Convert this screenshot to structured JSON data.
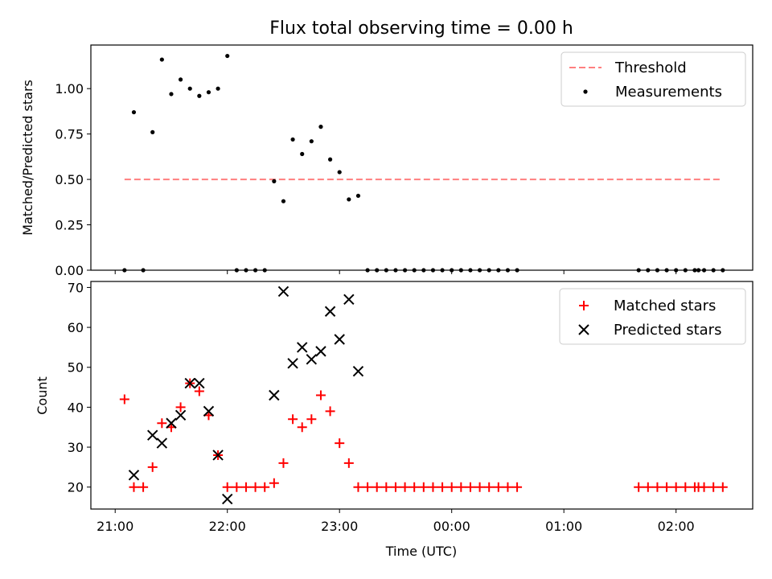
{
  "chart_data": [
    {
      "type": "scatter",
      "title": "Flux total observing time = 0.00 h",
      "xlabel": "",
      "ylabel": "Matched/Predicted stars",
      "xlim": [
        "20:47",
        "02:41"
      ],
      "ylim": [
        0,
        1.24
      ],
      "xticks": [
        "21:00",
        "22:00",
        "23:00",
        "00:00",
        "01:00",
        "02:00"
      ],
      "yticks": [
        "0.00",
        "0.25",
        "0.50",
        "0.75",
        "1.00"
      ],
      "ytick_values": [
        0,
        0.25,
        0.5,
        0.75,
        1.0
      ],
      "legend": {
        "position": "upper right",
        "entries": [
          "Threshold",
          "Measurements"
        ]
      },
      "colors": {
        "threshold": "#ff7f7f",
        "measurements": "#000000"
      },
      "threshold": {
        "name": "Threshold",
        "value": 0.5,
        "x_start": "21:05",
        "x_end": "02:25"
      },
      "series": [
        {
          "name": "Measurements",
          "x": [
            "21:05",
            "21:10",
            "21:15",
            "21:20",
            "21:25",
            "21:30",
            "21:35",
            "21:40",
            "21:45",
            "21:50",
            "21:55",
            "22:00",
            "22:05",
            "22:10",
            "22:15",
            "22:20",
            "22:25",
            "22:30",
            "22:35",
            "22:40",
            "22:45",
            "22:50",
            "22:55",
            "23:00",
            "23:05",
            "23:10",
            "23:15",
            "23:20",
            "23:25",
            "23:30",
            "23:35",
            "23:40",
            "23:45",
            "23:50",
            "23:55",
            "00:00",
            "00:05",
            "00:10",
            "00:15",
            "00:20",
            "00:25",
            "00:30",
            "00:35",
            "01:40",
            "01:45",
            "01:50",
            "01:55",
            "02:00",
            "02:05",
            "02:10",
            "02:12",
            "02:15",
            "02:20",
            "02:25"
          ],
          "y": [
            0,
            0.87,
            0,
            0.76,
            1.16,
            0.97,
            1.05,
            1.0,
            0.96,
            0.98,
            1.0,
            1.18,
            0,
            0,
            0,
            0,
            0.49,
            0.38,
            0.72,
            0.64,
            0.71,
            0.79,
            0.61,
            0.54,
            0.39,
            0.41,
            0,
            0,
            0,
            0,
            0,
            0,
            0,
            0,
            0,
            0,
            0,
            0,
            0,
            0,
            0,
            0,
            0,
            0,
            0,
            0,
            0,
            0,
            0,
            0,
            0,
            0,
            0,
            0
          ]
        }
      ]
    },
    {
      "type": "scatter",
      "title": "",
      "xlabel": "Time (UTC)",
      "ylabel": "Count",
      "xlim": [
        "20:47",
        "02:41"
      ],
      "ylim": [
        14.5,
        71.5
      ],
      "xticks": [
        "21:00",
        "22:00",
        "23:00",
        "00:00",
        "01:00",
        "02:00"
      ],
      "yticks": [
        "20",
        "30",
        "40",
        "50",
        "60",
        "70"
      ],
      "ytick_values": [
        20,
        30,
        40,
        50,
        60,
        70
      ],
      "legend": {
        "position": "upper right",
        "entries": [
          "Matched stars",
          "Predicted stars"
        ]
      },
      "colors": {
        "matched": "#ff0000",
        "predicted": "#000000"
      },
      "series": [
        {
          "name": "Matched stars",
          "marker": "plus",
          "x": [
            "21:05",
            "21:10",
            "21:15",
            "21:20",
            "21:25",
            "21:30",
            "21:35",
            "21:40",
            "21:45",
            "21:50",
            "21:55",
            "22:00",
            "22:05",
            "22:10",
            "22:15",
            "22:20",
            "22:25",
            "22:30",
            "22:35",
            "22:40",
            "22:45",
            "22:50",
            "22:55",
            "23:00",
            "23:05",
            "23:10",
            "23:15",
            "23:20",
            "23:25",
            "23:30",
            "23:35",
            "23:40",
            "23:45",
            "23:50",
            "23:55",
            "00:00",
            "00:05",
            "00:10",
            "00:15",
            "00:20",
            "00:25",
            "00:30",
            "00:35",
            "01:40",
            "01:45",
            "01:50",
            "01:55",
            "02:00",
            "02:05",
            "02:10",
            "02:12",
            "02:15",
            "02:20",
            "02:25"
          ],
          "y": [
            42,
            20,
            20,
            25,
            36,
            35,
            40,
            46,
            44,
            38,
            28,
            20,
            20,
            20,
            20,
            20,
            21,
            26,
            37,
            35,
            37,
            43,
            39,
            31,
            26,
            20,
            20,
            20,
            20,
            20,
            20,
            20,
            20,
            20,
            20,
            20,
            20,
            20,
            20,
            20,
            20,
            20,
            20,
            20,
            20,
            20,
            20,
            20,
            20,
            20,
            20,
            20,
            20,
            20
          ]
        },
        {
          "name": "Predicted stars",
          "marker": "x",
          "x": [
            "21:10",
            "21:20",
            "21:25",
            "21:30",
            "21:35",
            "21:40",
            "21:45",
            "21:50",
            "21:55",
            "22:00",
            "22:25",
            "22:30",
            "22:35",
            "22:40",
            "22:45",
            "22:50",
            "22:55",
            "23:00",
            "23:05",
            "23:10"
          ],
          "y": [
            23,
            33,
            31,
            36,
            38,
            46,
            46,
            39,
            28,
            17,
            43,
            69,
            51,
            55,
            52,
            54,
            64,
            57,
            67,
            49
          ]
        }
      ]
    }
  ]
}
